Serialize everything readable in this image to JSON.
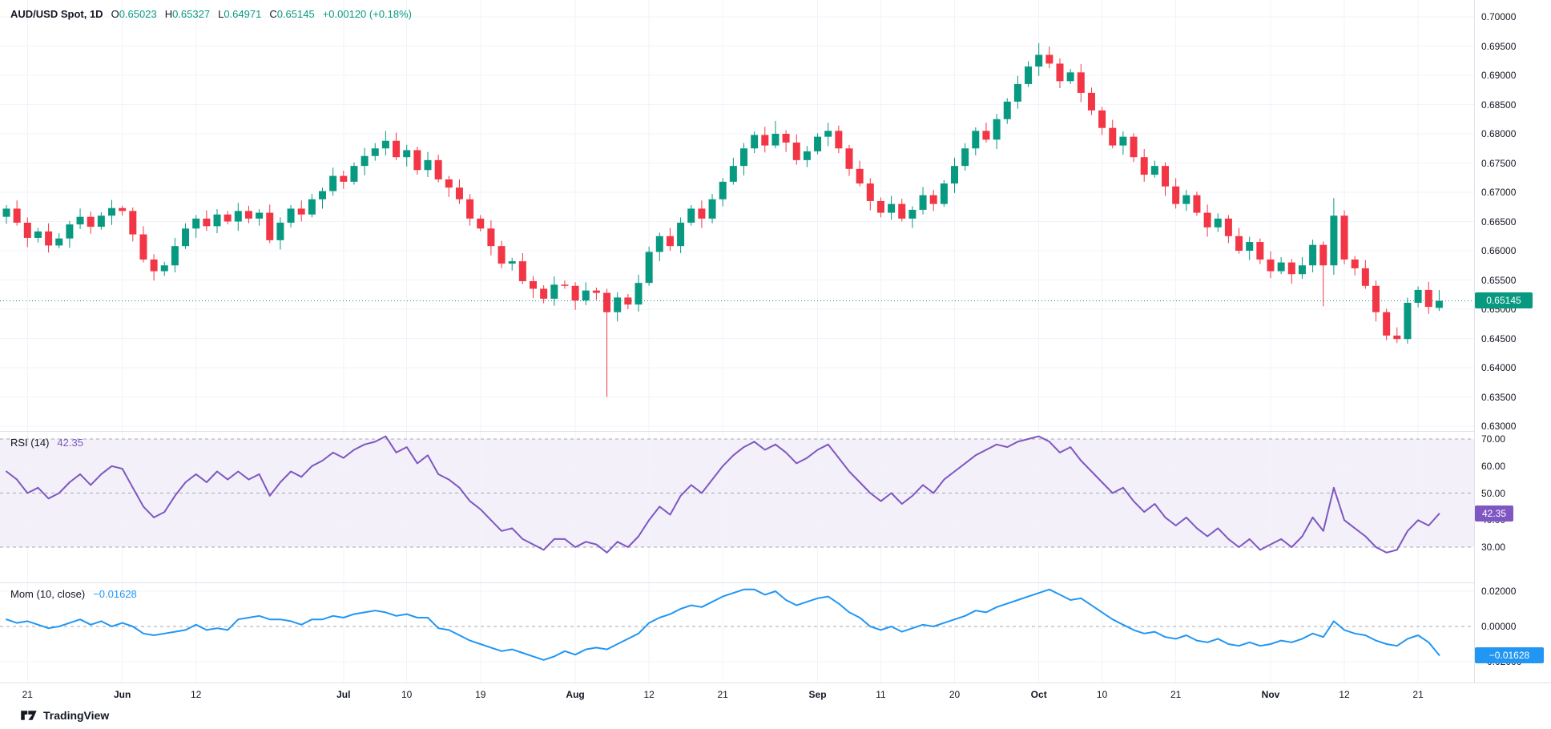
{
  "header": {
    "symbol": "AUD/USD Spot, 1D",
    "ohlc": [
      {
        "k": "O",
        "v": "0.65023"
      },
      {
        "k": "H",
        "v": "0.65327"
      },
      {
        "k": "L",
        "v": "0.64971"
      },
      {
        "k": "C",
        "v": "0.65145"
      }
    ],
    "change": "+0.00120 (+0.18%)"
  },
  "price_scale": {
    "badge": "0.65145"
  },
  "rsi": {
    "label": "RSI (14)",
    "value": "42.35",
    "badge": "42.35"
  },
  "mom": {
    "label": "Mom (10, close)",
    "value": "−0.01628",
    "badge": "−0.01628"
  },
  "branding": {
    "name": "TradingView"
  },
  "time_axis": {
    "ticks": [
      {
        "i": 2,
        "l": "21"
      },
      {
        "i": 11,
        "l": "Jun",
        "b": true
      },
      {
        "i": 18,
        "l": "12"
      },
      {
        "i": 32,
        "l": "Jul",
        "b": true
      },
      {
        "i": 38,
        "l": "10"
      },
      {
        "i": 45,
        "l": "19"
      },
      {
        "i": 54,
        "l": "Aug",
        "b": true
      },
      {
        "i": 61,
        "l": "12"
      },
      {
        "i": 68,
        "l": "21"
      },
      {
        "i": 77,
        "l": "Sep",
        "b": true
      },
      {
        "i": 83,
        "l": "11"
      },
      {
        "i": 90,
        "l": "20"
      },
      {
        "i": 98,
        "l": "Oct",
        "b": true
      },
      {
        "i": 104,
        "l": "10"
      },
      {
        "i": 111,
        "l": "21"
      },
      {
        "i": 120,
        "l": "Nov",
        "b": true
      },
      {
        "i": 127,
        "l": "12"
      },
      {
        "i": 134,
        "l": "21"
      }
    ]
  },
  "chart_data": [
    {
      "type": "candlestick",
      "title": "AUD/USD Spot, 1D",
      "legend": {
        "O": "0.65023",
        "H": "0.65327",
        "L": "0.64971",
        "C": "0.65145",
        "change": "+0.00120 (+0.18%)"
      },
      "ylim": [
        0.63,
        0.7
      ],
      "y_ticks": [
        0.7,
        0.695,
        0.69,
        0.685,
        0.68,
        0.675,
        0.67,
        0.665,
        0.66,
        0.655,
        0.65,
        0.645,
        0.64,
        0.635,
        0.63
      ],
      "last_price": 0.65145,
      "up_color": "#089981",
      "down_color": "#F23645",
      "grid": true,
      "candles": [
        [
          0.6658,
          0.6678,
          0.6646,
          0.6672
        ],
        [
          0.6672,
          0.6686,
          0.6643,
          0.6648
        ],
        [
          0.6648,
          0.6657,
          0.6606,
          0.6622
        ],
        [
          0.6622,
          0.6639,
          0.6614,
          0.6633
        ],
        [
          0.6633,
          0.6647,
          0.6597,
          0.6609
        ],
        [
          0.6609,
          0.663,
          0.6604,
          0.6621
        ],
        [
          0.6621,
          0.6651,
          0.6605,
          0.6645
        ],
        [
          0.6645,
          0.6672,
          0.6637,
          0.6658
        ],
        [
          0.6658,
          0.6667,
          0.6629,
          0.6641
        ],
        [
          0.6641,
          0.6666,
          0.6636,
          0.666
        ],
        [
          0.666,
          0.6687,
          0.6644,
          0.6673
        ],
        [
          0.6673,
          0.6677,
          0.666,
          0.6668
        ],
        [
          0.6668,
          0.6674,
          0.6616,
          0.6628
        ],
        [
          0.6628,
          0.6642,
          0.658,
          0.6585
        ],
        [
          0.6585,
          0.6594,
          0.6549,
          0.6565
        ],
        [
          0.6565,
          0.6581,
          0.6557,
          0.6575
        ],
        [
          0.6575,
          0.6622,
          0.6563,
          0.6608
        ],
        [
          0.6608,
          0.6647,
          0.6603,
          0.6638
        ],
        [
          0.6638,
          0.6661,
          0.6622,
          0.6655
        ],
        [
          0.6655,
          0.6669,
          0.6634,
          0.6642
        ],
        [
          0.6642,
          0.6671,
          0.663,
          0.6662
        ],
        [
          0.6662,
          0.6668,
          0.6645,
          0.665
        ],
        [
          0.665,
          0.6682,
          0.6634,
          0.6668
        ],
        [
          0.6668,
          0.6677,
          0.6647,
          0.6655
        ],
        [
          0.6655,
          0.6671,
          0.6643,
          0.6665
        ],
        [
          0.6665,
          0.6679,
          0.6613,
          0.6618
        ],
        [
          0.6618,
          0.6657,
          0.6602,
          0.6648
        ],
        [
          0.6648,
          0.6678,
          0.664,
          0.6672
        ],
        [
          0.6672,
          0.6686,
          0.665,
          0.6662
        ],
        [
          0.6662,
          0.6697,
          0.6657,
          0.6688
        ],
        [
          0.6688,
          0.6708,
          0.6672,
          0.6702
        ],
        [
          0.6702,
          0.6742,
          0.6694,
          0.6728
        ],
        [
          0.6728,
          0.6737,
          0.6706,
          0.6718
        ],
        [
          0.6718,
          0.6751,
          0.6713,
          0.6745
        ],
        [
          0.6745,
          0.6776,
          0.6729,
          0.6762
        ],
        [
          0.6762,
          0.6784,
          0.6754,
          0.6775
        ],
        [
          0.6775,
          0.6805,
          0.6763,
          0.6788
        ],
        [
          0.6788,
          0.6802,
          0.6755,
          0.676
        ],
        [
          0.676,
          0.6781,
          0.6744,
          0.6772
        ],
        [
          0.6772,
          0.6778,
          0.673,
          0.6738
        ],
        [
          0.6738,
          0.6769,
          0.6726,
          0.6755
        ],
        [
          0.6755,
          0.6764,
          0.6717,
          0.6722
        ],
        [
          0.6722,
          0.6728,
          0.6692,
          0.6708
        ],
        [
          0.6708,
          0.6722,
          0.668,
          0.6688
        ],
        [
          0.6688,
          0.6697,
          0.6643,
          0.6655
        ],
        [
          0.6655,
          0.6661,
          0.6633,
          0.6638
        ],
        [
          0.6638,
          0.6652,
          0.6592,
          0.6608
        ],
        [
          0.6608,
          0.6617,
          0.657,
          0.6578
        ],
        [
          0.6578,
          0.6588,
          0.6566,
          0.6582
        ],
        [
          0.6582,
          0.6596,
          0.6543,
          0.6548
        ],
        [
          0.6548,
          0.6557,
          0.6519,
          0.6535
        ],
        [
          0.6535,
          0.6541,
          0.651,
          0.6518
        ],
        [
          0.6518,
          0.6556,
          0.6506,
          0.6542
        ],
        [
          0.6542,
          0.6549,
          0.6535,
          0.654
        ],
        [
          0.654,
          0.6546,
          0.6499,
          0.6515
        ],
        [
          0.6515,
          0.6546,
          0.6507,
          0.6532
        ],
        [
          0.6532,
          0.6537,
          0.6516,
          0.6528
        ],
        [
          0.6528,
          0.6535,
          0.635,
          0.6495
        ],
        [
          0.6495,
          0.6529,
          0.6479,
          0.652
        ],
        [
          0.652,
          0.6526,
          0.65,
          0.6508
        ],
        [
          0.6508,
          0.6559,
          0.6496,
          0.6545
        ],
        [
          0.6545,
          0.6607,
          0.654,
          0.6598
        ],
        [
          0.6598,
          0.6631,
          0.6582,
          0.6625
        ],
        [
          0.6625,
          0.6639,
          0.66,
          0.6608
        ],
        [
          0.6608,
          0.6657,
          0.6596,
          0.6648
        ],
        [
          0.6648,
          0.6678,
          0.6643,
          0.6672
        ],
        [
          0.6672,
          0.6686,
          0.6639,
          0.6655
        ],
        [
          0.6655,
          0.6697,
          0.6647,
          0.6688
        ],
        [
          0.6688,
          0.6724,
          0.6676,
          0.6718
        ],
        [
          0.6718,
          0.6759,
          0.6713,
          0.6745
        ],
        [
          0.6745,
          0.6784,
          0.6729,
          0.6775
        ],
        [
          0.6775,
          0.6804,
          0.6767,
          0.6798
        ],
        [
          0.6798,
          0.6812,
          0.6768,
          0.678
        ],
        [
          0.678,
          0.6822,
          0.6775,
          0.68
        ],
        [
          0.68,
          0.6806,
          0.6769,
          0.6785
        ],
        [
          0.6785,
          0.6799,
          0.6747,
          0.6755
        ],
        [
          0.6755,
          0.6779,
          0.6743,
          0.677
        ],
        [
          0.677,
          0.6801,
          0.6765,
          0.6795
        ],
        [
          0.6795,
          0.6819,
          0.6779,
          0.6805
        ],
        [
          0.6805,
          0.6814,
          0.6767,
          0.6775
        ],
        [
          0.6775,
          0.6781,
          0.6728,
          0.674
        ],
        [
          0.674,
          0.6754,
          0.671,
          0.6715
        ],
        [
          0.6715,
          0.6724,
          0.6669,
          0.6685
        ],
        [
          0.6685,
          0.6691,
          0.6657,
          0.6665
        ],
        [
          0.6665,
          0.6694,
          0.6653,
          0.668
        ],
        [
          0.668,
          0.6689,
          0.665,
          0.6655
        ],
        [
          0.6655,
          0.6676,
          0.6639,
          0.667
        ],
        [
          0.667,
          0.6709,
          0.6662,
          0.6695
        ],
        [
          0.6695,
          0.6704,
          0.6668,
          0.668
        ],
        [
          0.668,
          0.6721,
          0.6675,
          0.6715
        ],
        [
          0.6715,
          0.6759,
          0.6699,
          0.6745
        ],
        [
          0.6745,
          0.6784,
          0.6737,
          0.6775
        ],
        [
          0.6775,
          0.6811,
          0.6763,
          0.6805
        ],
        [
          0.6805,
          0.6819,
          0.6785,
          0.679
        ],
        [
          0.679,
          0.6834,
          0.6774,
          0.6825
        ],
        [
          0.6825,
          0.6861,
          0.6817,
          0.6855
        ],
        [
          0.6855,
          0.6899,
          0.6843,
          0.6885
        ],
        [
          0.6885,
          0.6924,
          0.688,
          0.6915
        ],
        [
          0.6915,
          0.6955,
          0.6899,
          0.6935
        ],
        [
          0.6935,
          0.6949,
          0.6912,
          0.692
        ],
        [
          0.692,
          0.6929,
          0.6878,
          0.689
        ],
        [
          0.689,
          0.6911,
          0.6885,
          0.6905
        ],
        [
          0.6905,
          0.6919,
          0.6854,
          0.687
        ],
        [
          0.687,
          0.6879,
          0.6832,
          0.684
        ],
        [
          0.684,
          0.6846,
          0.6798,
          0.681
        ],
        [
          0.681,
          0.6824,
          0.6775,
          0.678
        ],
        [
          0.678,
          0.6804,
          0.6764,
          0.6795
        ],
        [
          0.6795,
          0.6801,
          0.6752,
          0.676
        ],
        [
          0.676,
          0.6774,
          0.6718,
          0.673
        ],
        [
          0.673,
          0.6754,
          0.6725,
          0.6745
        ],
        [
          0.6745,
          0.6751,
          0.6694,
          0.671
        ],
        [
          0.671,
          0.6724,
          0.6672,
          0.668
        ],
        [
          0.668,
          0.6704,
          0.6668,
          0.6695
        ],
        [
          0.6695,
          0.6701,
          0.666,
          0.6665
        ],
        [
          0.6665,
          0.6679,
          0.6624,
          0.664
        ],
        [
          0.664,
          0.6664,
          0.6632,
          0.6655
        ],
        [
          0.6655,
          0.6661,
          0.6613,
          0.6625
        ],
        [
          0.6625,
          0.6639,
          0.6595,
          0.66
        ],
        [
          0.66,
          0.6624,
          0.6584,
          0.6615
        ],
        [
          0.6615,
          0.6621,
          0.6577,
          0.6585
        ],
        [
          0.6585,
          0.6599,
          0.6553,
          0.6565
        ],
        [
          0.6565,
          0.6589,
          0.656,
          0.658
        ],
        [
          0.658,
          0.6586,
          0.6544,
          0.656
        ],
        [
          0.656,
          0.6589,
          0.6552,
          0.6575
        ],
        [
          0.6575,
          0.6619,
          0.6563,
          0.661
        ],
        [
          0.661,
          0.6616,
          0.6505,
          0.6575
        ],
        [
          0.6575,
          0.669,
          0.6559,
          0.666
        ],
        [
          0.666,
          0.6669,
          0.6577,
          0.6585
        ],
        [
          0.6585,
          0.6591,
          0.6558,
          0.657
        ],
        [
          0.657,
          0.6584,
          0.6535,
          0.654
        ],
        [
          0.654,
          0.6549,
          0.6479,
          0.6495
        ],
        [
          0.6495,
          0.6501,
          0.6447,
          0.6455
        ],
        [
          0.6455,
          0.6469,
          0.6442,
          0.6449
        ],
        [
          0.6449,
          0.652,
          0.6441,
          0.6511
        ],
        [
          0.6511,
          0.6539,
          0.6503,
          0.6533
        ],
        [
          0.6533,
          0.6547,
          0.6492,
          0.6504
        ],
        [
          0.65023,
          0.65327,
          0.64971,
          0.65145
        ]
      ]
    },
    {
      "type": "line",
      "name": "RSI (14)",
      "last_value": 42.35,
      "color": "#7E57C2",
      "ylim": [
        16,
        72
      ],
      "y_ticks": [
        70,
        60,
        50,
        40,
        30
      ],
      "levels_dashed": [
        70,
        50,
        30
      ],
      "levels_solid": [
        60,
        40
      ],
      "band": [
        30,
        70
      ],
      "band_color": "rgba(126,87,194,0.09)",
      "values": [
        58,
        55,
        50,
        52,
        48,
        50,
        54,
        57,
        53,
        57,
        60,
        59,
        52,
        45,
        41,
        43,
        49,
        54,
        57,
        54,
        58,
        55,
        58,
        55,
        57,
        49,
        54,
        58,
        56,
        60,
        62,
        65,
        63,
        66,
        68,
        69,
        71,
        65,
        67,
        61,
        64,
        57,
        55,
        52,
        47,
        44,
        40,
        36,
        37,
        33,
        31,
        29,
        33,
        33,
        30,
        32,
        31,
        28,
        32,
        30,
        34,
        40,
        45,
        42,
        49,
        53,
        50,
        55,
        60,
        64,
        67,
        69,
        66,
        68,
        65,
        61,
        63,
        66,
        68,
        63,
        58,
        54,
        50,
        47,
        50,
        46,
        49,
        53,
        50,
        55,
        58,
        61,
        64,
        66,
        68,
        67,
        69,
        70,
        71,
        69,
        65,
        67,
        62,
        58,
        54,
        50,
        52,
        47,
        43,
        46,
        41,
        38,
        41,
        37,
        34,
        37,
        33,
        30,
        33,
        29,
        31,
        33,
        30,
        34,
        41,
        36,
        52,
        40,
        37,
        34,
        30,
        28,
        29,
        36,
        40,
        38,
        42.35
      ]
    },
    {
      "type": "line",
      "name": "Mom (10, close)",
      "last_value": -0.01628,
      "color": "#2196F3",
      "ylim": [
        -0.032,
        0.025
      ],
      "y_ticks": [
        0.02,
        0,
        -0.02
      ],
      "levels_dashed": [
        0
      ],
      "levels_solid": [
        0.02,
        -0.02
      ],
      "values": [
        0.004,
        0.002,
        0.003,
        0.001,
        -0.001,
        0,
        0.002,
        0.004,
        0.001,
        0.003,
        0,
        0.002,
        0,
        -0.004,
        -0.005,
        -0.004,
        -0.003,
        -0.002,
        0.001,
        -0.002,
        -0.001,
        -0.002,
        0.004,
        0.005,
        0.006,
        0.004,
        0.004,
        0.003,
        0.001,
        0.004,
        0.004,
        0.006,
        0.005,
        0.007,
        0.008,
        0.009,
        0.008,
        0.006,
        0.007,
        0.005,
        0.005,
        -0.001,
        -0.002,
        -0.005,
        -0.008,
        -0.01,
        -0.012,
        -0.014,
        -0.013,
        -0.015,
        -0.017,
        -0.019,
        -0.017,
        -0.014,
        -0.016,
        -0.013,
        -0.012,
        -0.013,
        -0.01,
        -0.007,
        -0.004,
        0.002,
        0.005,
        0.007,
        0.01,
        0.012,
        0.011,
        0.014,
        0.017,
        0.019,
        0.021,
        0.021,
        0.018,
        0.02,
        0.015,
        0.012,
        0.014,
        0.016,
        0.017,
        0.013,
        0.008,
        0.005,
        0,
        -0.002,
        0,
        -0.003,
        -0.001,
        0.001,
        0,
        0.002,
        0.004,
        0.006,
        0.009,
        0.008,
        0.011,
        0.013,
        0.015,
        0.017,
        0.019,
        0.021,
        0.018,
        0.015,
        0.016,
        0.012,
        0.008,
        0.004,
        0.001,
        -0.002,
        -0.004,
        -0.003,
        -0.006,
        -0.007,
        -0.005,
        -0.008,
        -0.009,
        -0.007,
        -0.01,
        -0.011,
        -0.009,
        -0.011,
        -0.01,
        -0.008,
        -0.009,
        -0.007,
        -0.004,
        -0.006,
        0.003,
        -0.002,
        -0.004,
        -0.005,
        -0.008,
        -0.01,
        -0.011,
        -0.007,
        -0.005,
        -0.009,
        -0.01628
      ]
    }
  ]
}
